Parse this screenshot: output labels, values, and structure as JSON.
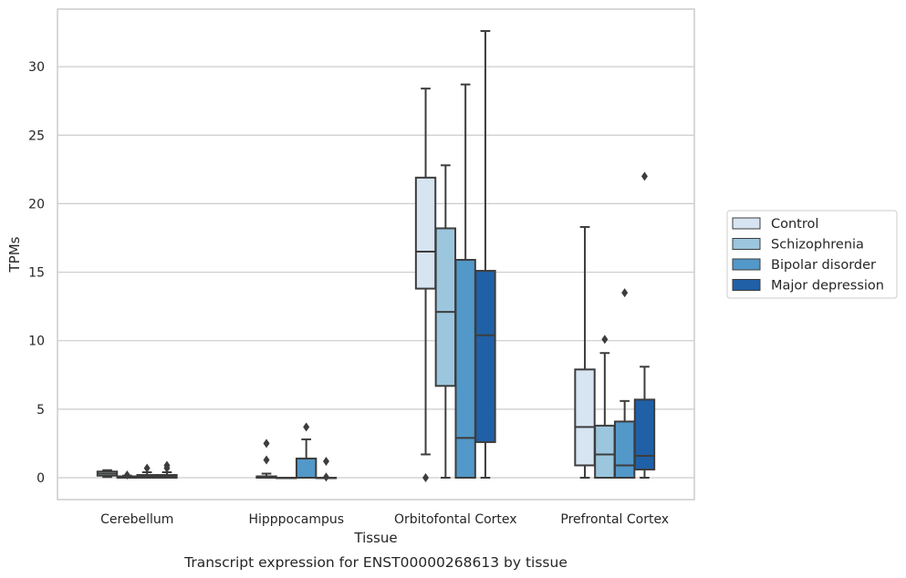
{
  "chart_data": {
    "type": "boxplot",
    "title": "Transcript expression for ENST00000268613 by tissue",
    "xlabel": "Tissue",
    "ylabel": "TPMs",
    "ylim": [
      -1.6,
      34.2
    ],
    "yticks": [
      0,
      5,
      10,
      15,
      20,
      25,
      30
    ],
    "grid": true,
    "legend_position": "right",
    "categories": [
      "Cerebellum",
      "Hipppocampus",
      "Orbitofontal Cortex",
      "Prefrontal Cortex"
    ],
    "series": [
      {
        "name": "Control",
        "color": "#d7e4f1",
        "boxes": [
          {
            "whislo": 0.05,
            "q1": 0.15,
            "med": 0.3,
            "q3": 0.45,
            "whishi": 0.55,
            "fliers": []
          },
          {
            "whislo": 0.0,
            "q1": 0.0,
            "med": 0.05,
            "q3": 0.1,
            "whishi": 0.3,
            "fliers": [
              1.3,
              2.5
            ]
          },
          {
            "whislo": 1.7,
            "q1": 13.8,
            "med": 16.5,
            "q3": 21.9,
            "whishi": 28.4,
            "fliers": [
              0.0
            ]
          },
          {
            "whislo": 0.0,
            "q1": 0.9,
            "med": 3.7,
            "q3": 7.9,
            "whishi": 18.3,
            "fliers": []
          }
        ]
      },
      {
        "name": "Schizophrenia",
        "color": "#9bc6de",
        "boxes": [
          {
            "whislo": 0.0,
            "q1": 0.0,
            "med": 0.05,
            "q3": 0.1,
            "whishi": 0.15,
            "fliers": [
              0.2
            ]
          },
          {
            "whislo": 0.0,
            "q1": 0.0,
            "med": 0.0,
            "q3": 0.0,
            "whishi": 0.0,
            "fliers": []
          },
          {
            "whislo": 0.0,
            "q1": 6.7,
            "med": 12.1,
            "q3": 18.2,
            "whishi": 22.8,
            "fliers": []
          },
          {
            "whislo": 0.0,
            "q1": 0.0,
            "med": 1.7,
            "q3": 3.8,
            "whishi": 9.1,
            "fliers": [
              10.1
            ]
          }
        ]
      },
      {
        "name": "Bipolar disorder",
        "color": "#5298c9",
        "boxes": [
          {
            "whislo": 0.0,
            "q1": 0.0,
            "med": 0.1,
            "q3": 0.2,
            "whishi": 0.4,
            "fliers": [
              0.7
            ]
          },
          {
            "whislo": 0.0,
            "q1": 0.0,
            "med": 0.0,
            "q3": 1.4,
            "whishi": 2.8,
            "fliers": [
              3.7
            ]
          },
          {
            "whislo": 0.0,
            "q1": 0.0,
            "med": 2.9,
            "q3": 15.9,
            "whishi": 28.7,
            "fliers": []
          },
          {
            "whislo": 0.0,
            "q1": 0.0,
            "med": 0.9,
            "q3": 4.1,
            "whishi": 5.6,
            "fliers": [
              13.5
            ]
          }
        ]
      },
      {
        "name": "Major depression",
        "color": "#2060a6",
        "boxes": [
          {
            "whislo": 0.0,
            "q1": 0.0,
            "med": 0.1,
            "q3": 0.2,
            "whishi": 0.4,
            "fliers": [
              0.7,
              0.9
            ]
          },
          {
            "whislo": 0.0,
            "q1": 0.0,
            "med": 0.0,
            "q3": 0.0,
            "whishi": 0.0,
            "fliers": [
              0.05,
              1.2
            ]
          },
          {
            "whislo": 0.0,
            "q1": 2.6,
            "med": 10.4,
            "q3": 15.1,
            "whishi": 32.6,
            "fliers": []
          },
          {
            "whislo": 0.0,
            "q1": 0.6,
            "med": 1.6,
            "q3": 5.7,
            "whishi": 8.1,
            "fliers": [
              22.0
            ]
          }
        ]
      }
    ]
  }
}
